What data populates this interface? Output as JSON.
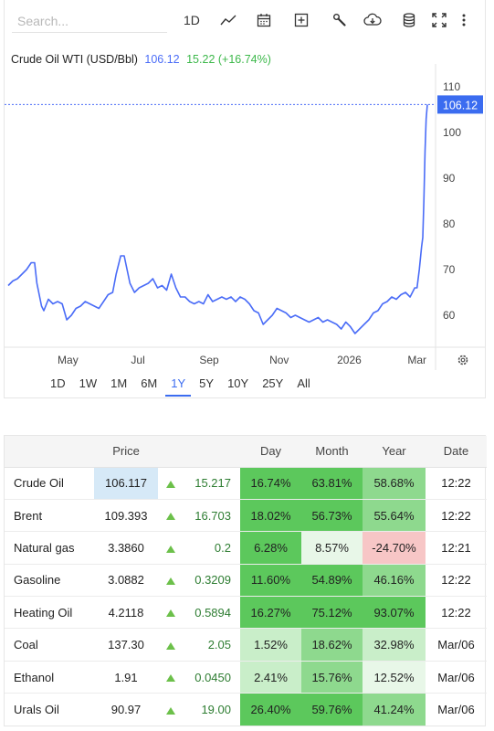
{
  "toolbar": {
    "search_placeholder": "Search...",
    "interval_label": "1D",
    "icons": [
      "line-chart-icon",
      "calendar-icon",
      "plus-box-icon",
      "wrench-icon",
      "cloud-download-icon",
      "database-icon",
      "fullscreen-icon",
      "more-vertical-icon"
    ]
  },
  "legend": {
    "name": "Crude Oil WTI (USD/Bbl)",
    "price": "106.12",
    "change": "15.22 (+16.74%)"
  },
  "chart_data": {
    "type": "line",
    "series": [
      {
        "name": "Crude Oil WTI (USD/Bbl)",
        "x": [
          "2025-03-10",
          "2025-03-14",
          "2025-03-18",
          "2025-03-22",
          "2025-03-26",
          "2025-03-30",
          "2025-04-02",
          "2025-04-04",
          "2025-04-08",
          "2025-04-10",
          "2025-04-14",
          "2025-04-18",
          "2025-04-22",
          "2025-04-26",
          "2025-04-30",
          "2025-05-04",
          "2025-05-08",
          "2025-05-12",
          "2025-05-16",
          "2025-05-20",
          "2025-05-24",
          "2025-05-28",
          "2025-06-01",
          "2025-06-05",
          "2025-06-09",
          "2025-06-12",
          "2025-06-16",
          "2025-06-19",
          "2025-06-24",
          "2025-06-28",
          "2025-07-02",
          "2025-07-06",
          "2025-07-10",
          "2025-07-14",
          "2025-07-18",
          "2025-07-22",
          "2025-07-26",
          "2025-07-30",
          "2025-08-03",
          "2025-08-07",
          "2025-08-11",
          "2025-08-15",
          "2025-08-19",
          "2025-08-23",
          "2025-08-27",
          "2025-08-31",
          "2025-09-04",
          "2025-09-08",
          "2025-09-12",
          "2025-09-16",
          "2025-09-20",
          "2025-09-24",
          "2025-09-28",
          "2025-10-02",
          "2025-10-06",
          "2025-10-10",
          "2025-10-14",
          "2025-10-18",
          "2025-10-22",
          "2025-10-26",
          "2025-10-30",
          "2025-11-03",
          "2025-11-07",
          "2025-11-11",
          "2025-11-15",
          "2025-11-19",
          "2025-11-23",
          "2025-11-27",
          "2025-12-01",
          "2025-12-05",
          "2025-12-09",
          "2025-12-13",
          "2025-12-17",
          "2025-12-21",
          "2025-12-25",
          "2025-12-29",
          "2026-01-02",
          "2026-01-06",
          "2026-01-10",
          "2026-01-14",
          "2026-01-18",
          "2026-01-22",
          "2026-01-26",
          "2026-01-30",
          "2026-02-03",
          "2026-02-07",
          "2026-02-11",
          "2026-02-15",
          "2026-02-19",
          "2026-02-23",
          "2026-02-27",
          "2026-03-01",
          "2026-03-03",
          "2026-03-05",
          "2026-03-06",
          "2026-03-07",
          "2026-03-08",
          "2026-03-09",
          "2026-03-10"
        ],
        "y": [
          66.5,
          67.5,
          68,
          69,
          70,
          71.5,
          71.5,
          67,
          62,
          61,
          63.5,
          62.5,
          63,
          62.5,
          59,
          60,
          61.5,
          62,
          63,
          62.5,
          62,
          61.5,
          63,
          64.5,
          65,
          69,
          73,
          73,
          67,
          65,
          66,
          66.5,
          67,
          68,
          66,
          66.5,
          65.5,
          69,
          66,
          64,
          64,
          63,
          62.5,
          63,
          62.5,
          64.5,
          63,
          63.5,
          64,
          63.5,
          64,
          63,
          64,
          63.5,
          62.5,
          61,
          60.5,
          58,
          59,
          60,
          61.5,
          61,
          60.5,
          59.5,
          60,
          59.5,
          59,
          58.5,
          59,
          59.5,
          58.5,
          59,
          58.5,
          58,
          57,
          58.5,
          57.5,
          56,
          57,
          58,
          59,
          60.5,
          61,
          62.5,
          63,
          64,
          63.5,
          64.5,
          65,
          64,
          66,
          66,
          70,
          75,
          77,
          85,
          96,
          103,
          106.12
        ]
      }
    ],
    "xlabel": "",
    "ylabel": "",
    "ylim": [
      53,
      115
    ],
    "y_ticks": [
      60,
      70,
      80,
      90,
      100,
      110
    ],
    "x_ticks": [
      {
        "label": "May",
        "date": "2025-05-01"
      },
      {
        "label": "Jul",
        "date": "2025-07-01"
      },
      {
        "label": "Sep",
        "date": "2025-09-01"
      },
      {
        "label": "Nov",
        "date": "2025-11-01"
      },
      {
        "label": "2026",
        "date": "2026-01-01"
      },
      {
        "label": "Mar",
        "date": "2026-03-01"
      }
    ],
    "last_price": 106.12,
    "grid": false,
    "colors": {
      "line": "#4a6cf7",
      "price_tag": "#3b6cf0"
    }
  },
  "ranges": [
    "1D",
    "1W",
    "1M",
    "6M",
    "1Y",
    "5Y",
    "10Y",
    "25Y",
    "All"
  ],
  "active_range": "1Y",
  "table": {
    "headers": [
      "",
      "Price",
      "",
      "",
      "Day",
      "Month",
      "Year",
      "Date"
    ],
    "rows": [
      {
        "name": "Crude Oil",
        "price": "106.117",
        "change": "15.217",
        "day": "16.74%",
        "month": "63.81%",
        "year": "58.68%",
        "date": "12:22"
      },
      {
        "name": "Brent",
        "price": "109.393",
        "change": "16.703",
        "day": "18.02%",
        "month": "56.73%",
        "year": "55.64%",
        "date": "12:22"
      },
      {
        "name": "Natural gas",
        "price": "3.3860",
        "change": "0.2",
        "day": "6.28%",
        "month": "8.57%",
        "year": "-24.70%",
        "date": "12:21"
      },
      {
        "name": "Gasoline",
        "price": "3.0882",
        "change": "0.3209",
        "day": "11.60%",
        "month": "54.89%",
        "year": "46.16%",
        "date": "12:22"
      },
      {
        "name": "Heating Oil",
        "price": "4.2118",
        "change": "0.5894",
        "day": "16.27%",
        "month": "75.12%",
        "year": "93.07%",
        "date": "12:22"
      },
      {
        "name": "Coal",
        "price": "137.30",
        "change": "2.05",
        "day": "1.52%",
        "month": "18.62%",
        "year": "32.98%",
        "date": "Mar/06"
      },
      {
        "name": "Ethanol",
        "price": "1.91",
        "change": "0.0450",
        "day": "2.41%",
        "month": "15.76%",
        "year": "12.52%",
        "date": "Mar/06"
      },
      {
        "name": "Urals Oil",
        "price": "90.97",
        "change": "19.00",
        "day": "26.40%",
        "month": "59.76%",
        "year": "41.24%",
        "date": "Mar/06"
      }
    ],
    "heat_colors": {
      "strong_green": "#5cc85c",
      "mid_green": "#8ed98e",
      "light_green": "#c9eec9",
      "pale_green": "#e8f7e8",
      "red": "#f7c6c6",
      "price_highlight": "#d6e9f7"
    }
  }
}
